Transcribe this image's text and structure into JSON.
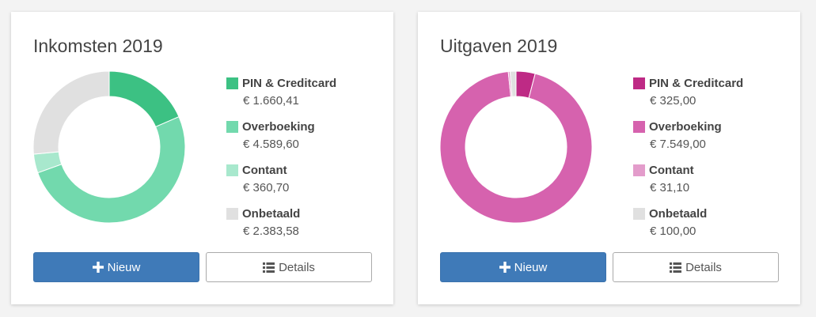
{
  "chart_data": [
    {
      "type": "pie",
      "title": "Inkomsten 2019",
      "categories": [
        "PIN & Creditcard",
        "Overboeking",
        "Contant",
        "Onbetaald"
      ],
      "values": [
        1660.41,
        4589.6,
        360.7,
        2383.58
      ],
      "value_labels": [
        "€ 1.660,41",
        "€ 4.589,60",
        "€ 360,70",
        "€ 2.383,58"
      ],
      "colors": [
        "#3cc183",
        "#72d9ad",
        "#a8e8cd",
        "#e0e0e0"
      ],
      "legend_position": "right"
    },
    {
      "type": "pie",
      "title": "Uitgaven 2019",
      "categories": [
        "PIN & Creditcard",
        "Overboeking",
        "Contant",
        "Onbetaald"
      ],
      "values": [
        325.0,
        7549.0,
        31.1,
        100.0
      ],
      "value_labels": [
        "€ 325,00",
        "€ 7.549,00",
        "€ 31,10",
        "€ 100,00"
      ],
      "colors": [
        "#be2a85",
        "#d662ae",
        "#e39ccb",
        "#e0e0e0"
      ],
      "legend_position": "right"
    }
  ],
  "buttons": {
    "new_label": "Nieuw",
    "details_label": "Details",
    "new_icon": "plus-icon",
    "details_icon": "list-icon"
  }
}
